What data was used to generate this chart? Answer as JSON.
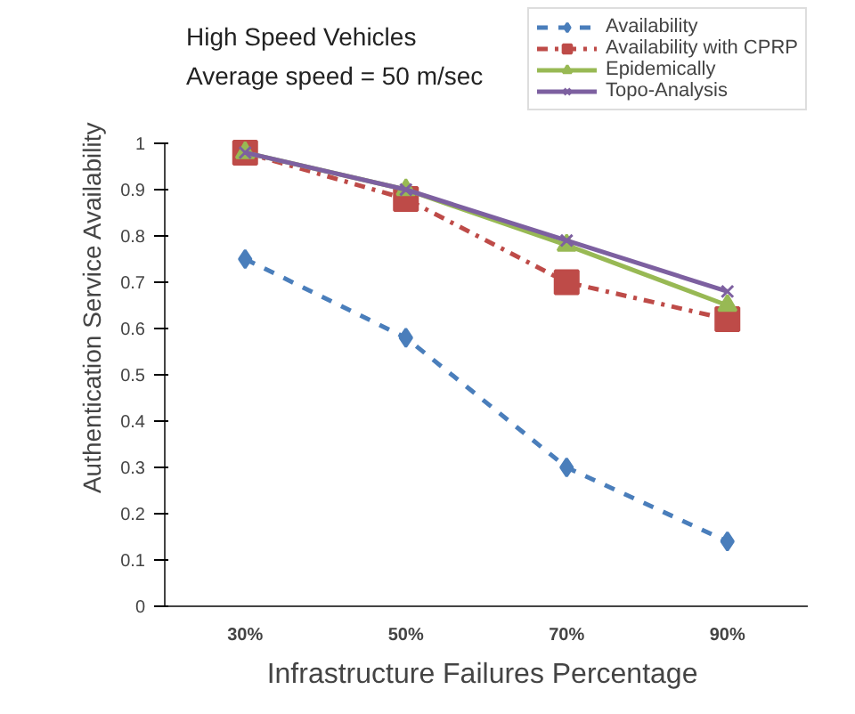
{
  "chart_data": {
    "type": "line",
    "title": "High Speed Vehicles",
    "subtitle": "Average speed = 50 m/sec",
    "xlabel": "Infrastructure  Failures Percentage",
    "ylabel": "Authentication Service Availability",
    "categories": [
      "30%",
      "50%",
      "70%",
      "90%"
    ],
    "series": [
      {
        "name": "Availability",
        "color": "#4a7ebb",
        "values": [
          0.75,
          0.58,
          0.3,
          0.14
        ],
        "marker": "diamond",
        "line_style": "dashed"
      },
      {
        "name": "Availability with CPRP",
        "color": "#be4b48",
        "values": [
          0.98,
          0.88,
          0.7,
          0.62
        ],
        "marker": "square",
        "line_style": "dashdot"
      },
      {
        "name": "Epidemically",
        "color": "#98b954",
        "values": [
          0.98,
          0.9,
          0.78,
          0.65
        ],
        "marker": "triangle",
        "line_style": "solid"
      },
      {
        "name": "Topo-Analysis",
        "color": "#7d60a0",
        "values": [
          0.98,
          0.9,
          0.79,
          0.68
        ],
        "marker": "cross",
        "line_style": "solid"
      }
    ],
    "ylim": [
      0,
      1
    ],
    "yticks": [
      0,
      0.1,
      0.2,
      0.3,
      0.4,
      0.5,
      0.6,
      0.7,
      0.8,
      0.9,
      1
    ],
    "grid": false,
    "legend": "top right"
  }
}
